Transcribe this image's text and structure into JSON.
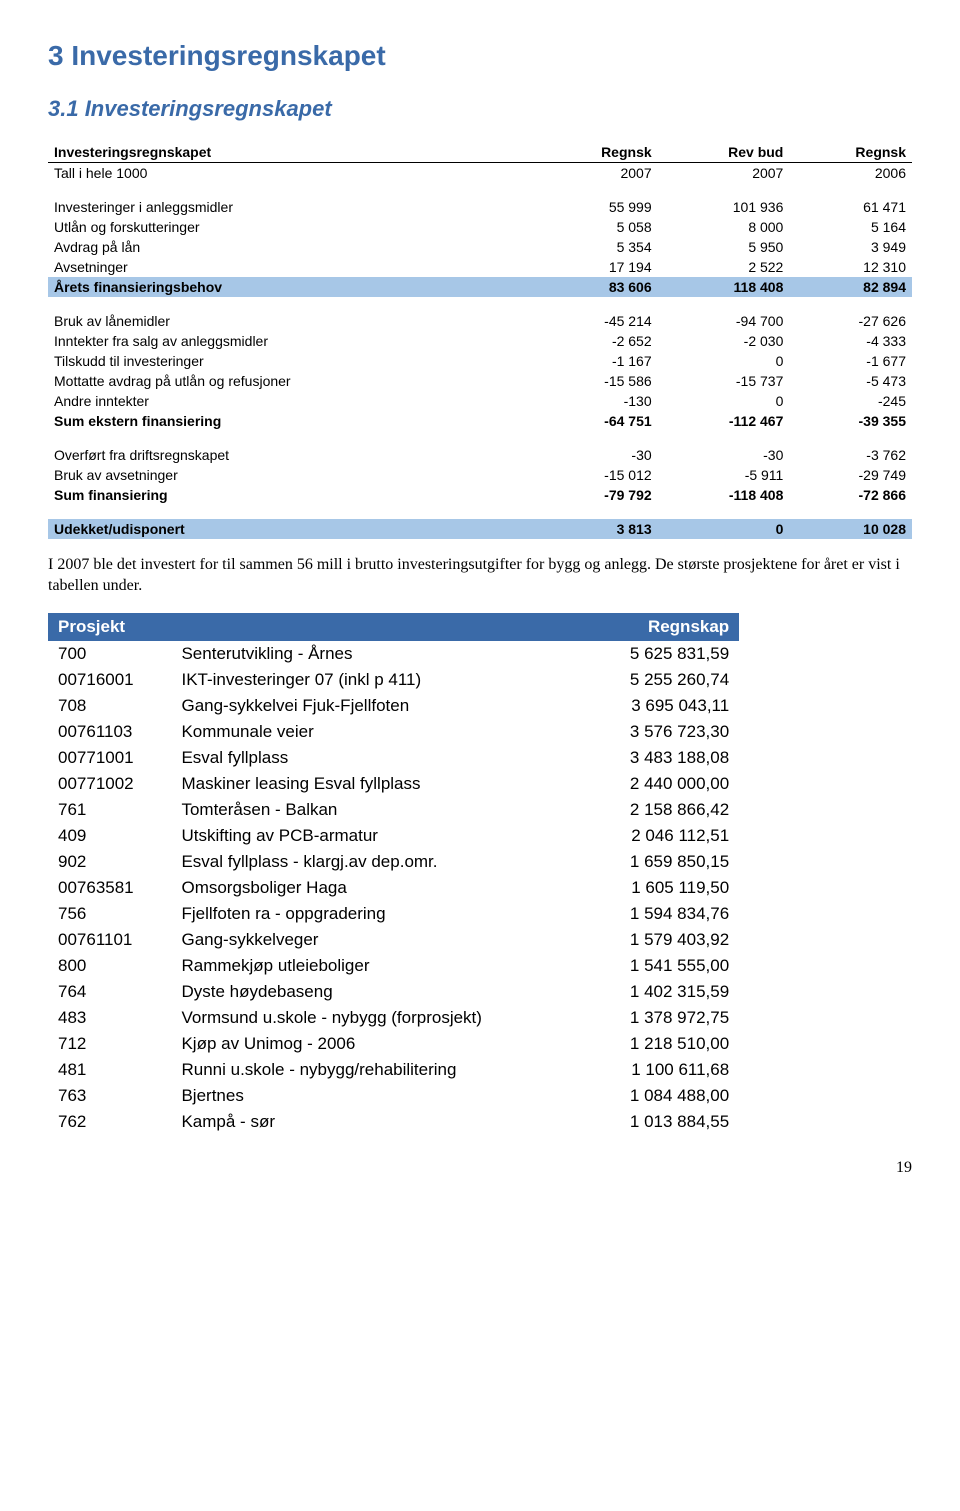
{
  "headings": {
    "h1": "3   Investeringsregnskapet",
    "h2": "3.1   Investeringsregnskapet"
  },
  "table1": {
    "header": {
      "c0": "Investeringsregnskapet",
      "c1": "Regnsk",
      "c2": "Rev bud",
      "c3": "Regnsk"
    },
    "subheader": {
      "c0": "Tall i hele 1000",
      "c1": "2007",
      "c2": "2007",
      "c3": "2006"
    },
    "rows": [
      {
        "label": "Investeringer i anleggsmidler",
        "v": [
          "55 999",
          "101 936",
          "61 471"
        ]
      },
      {
        "label": "Utlån og forskutteringer",
        "v": [
          "5 058",
          "8 000",
          "5 164"
        ]
      },
      {
        "label": "Avdrag på lån",
        "v": [
          "5 354",
          "5 950",
          "3 949"
        ]
      },
      {
        "label": "Avsetninger",
        "v": [
          "17 194",
          "2 522",
          "12 310"
        ]
      }
    ],
    "highlight1": {
      "label": "Årets finansieringsbehov",
      "v": [
        "83 606",
        "118 408",
        "82 894"
      ]
    },
    "rows2": [
      {
        "label": "Bruk av lånemidler",
        "v": [
          "-45 214",
          "-94 700",
          "-27 626"
        ]
      },
      {
        "label": "Inntekter fra salg av anleggsmidler",
        "v": [
          "-2 652",
          "-2 030",
          "-4 333"
        ]
      },
      {
        "label": "Tilskudd til investeringer",
        "v": [
          "-1 167",
          "0",
          "-1 677"
        ]
      },
      {
        "label": "Mottatte avdrag på utlån og refusjoner",
        "v": [
          "-15 586",
          "-15 737",
          "-5 473"
        ]
      },
      {
        "label": "Andre inntekter",
        "v": [
          "-130",
          "0",
          "-245"
        ]
      }
    ],
    "bold1": {
      "label": "Sum ekstern finansiering",
      "v": [
        "-64 751",
        "-112 467",
        "-39 355"
      ]
    },
    "rows3": [
      {
        "label": "Overført fra driftsregnskapet",
        "v": [
          "-30",
          "-30",
          "-3 762"
        ]
      },
      {
        "label": "Bruk av avsetninger",
        "v": [
          "-15 012",
          "-5 911",
          "-29 749"
        ]
      }
    ],
    "bold2": {
      "label": "Sum finansiering",
      "v": [
        "-79 792",
        "-118 408",
        "-72 866"
      ]
    },
    "highlight2": {
      "label": "Udekket/udisponert",
      "v": [
        "3 813",
        "0",
        "10 028"
      ]
    }
  },
  "paragraph": "I 2007 ble det investert for til sammen 56 mill i brutto investeringsutgifter for bygg og anlegg. De største prosjektene for året er vist i tabellen under.",
  "projects": {
    "header": {
      "c0": "Prosjekt",
      "c1": "",
      "c2": "Regnskap"
    },
    "rows": [
      {
        "code": "700",
        "name": "Senterutvikling - Årnes",
        "amt": "5 625 831,59"
      },
      {
        "code": "00716001",
        "name": "IKT-investeringer 07 (inkl p 411)",
        "amt": "5 255 260,74"
      },
      {
        "code": "708",
        "name": "Gang-sykkelvei Fjuk-Fjellfoten",
        "amt": "3 695 043,11"
      },
      {
        "code": "00761103",
        "name": "Kommunale veier",
        "amt": "3 576 723,30"
      },
      {
        "code": "00771001",
        "name": "Esval fyllplass",
        "amt": "3 483 188,08"
      },
      {
        "code": "00771002",
        "name": "Maskiner leasing Esval fyllplass",
        "amt": "2 440 000,00"
      },
      {
        "code": "761",
        "name": "Tomteråsen - Balkan",
        "amt": "2 158 866,42"
      },
      {
        "code": "409",
        "name": "Utskifting av PCB-armatur",
        "amt": "2 046 112,51"
      },
      {
        "code": "902",
        "name": "Esval fyllplass - klargj.av dep.omr.",
        "amt": "1 659 850,15"
      },
      {
        "code": "00763581",
        "name": "Omsorgsboliger Haga",
        "amt": "1 605 119,50"
      },
      {
        "code": "756",
        "name": "Fjellfoten ra - oppgradering",
        "amt": "1 594 834,76"
      },
      {
        "code": "00761101",
        "name": "Gang-sykkelveger",
        "amt": "1 579 403,92"
      },
      {
        "code": "800",
        "name": "Rammekjøp utleieboliger",
        "amt": "1 541 555,00"
      },
      {
        "code": "764",
        "name": "Dyste høydebaseng",
        "amt": "1 402 315,59"
      },
      {
        "code": "483",
        "name": "Vormsund u.skole - nybygg (forprosjekt)",
        "amt": "1 378 972,75"
      },
      {
        "code": "712",
        "name": "Kjøp av Unimog - 2006",
        "amt": "1 218 510,00"
      },
      {
        "code": "481",
        "name": "Runni u.skole - nybygg/rehabilitering",
        "amt": "1 100 611,68"
      },
      {
        "code": "763",
        "name": "Bjertnes",
        "amt": "1 084 488,00"
      },
      {
        "code": "762",
        "name": "Kampå - sør",
        "amt": "1 013 884,55"
      }
    ]
  },
  "pageNumber": "19",
  "colors": {
    "heading": "#3a6aa8",
    "highlight_bg": "#a7c7e7",
    "project_header_bg": "#3a6aa8",
    "project_header_fg": "#ffffff",
    "background": "#ffffff"
  }
}
